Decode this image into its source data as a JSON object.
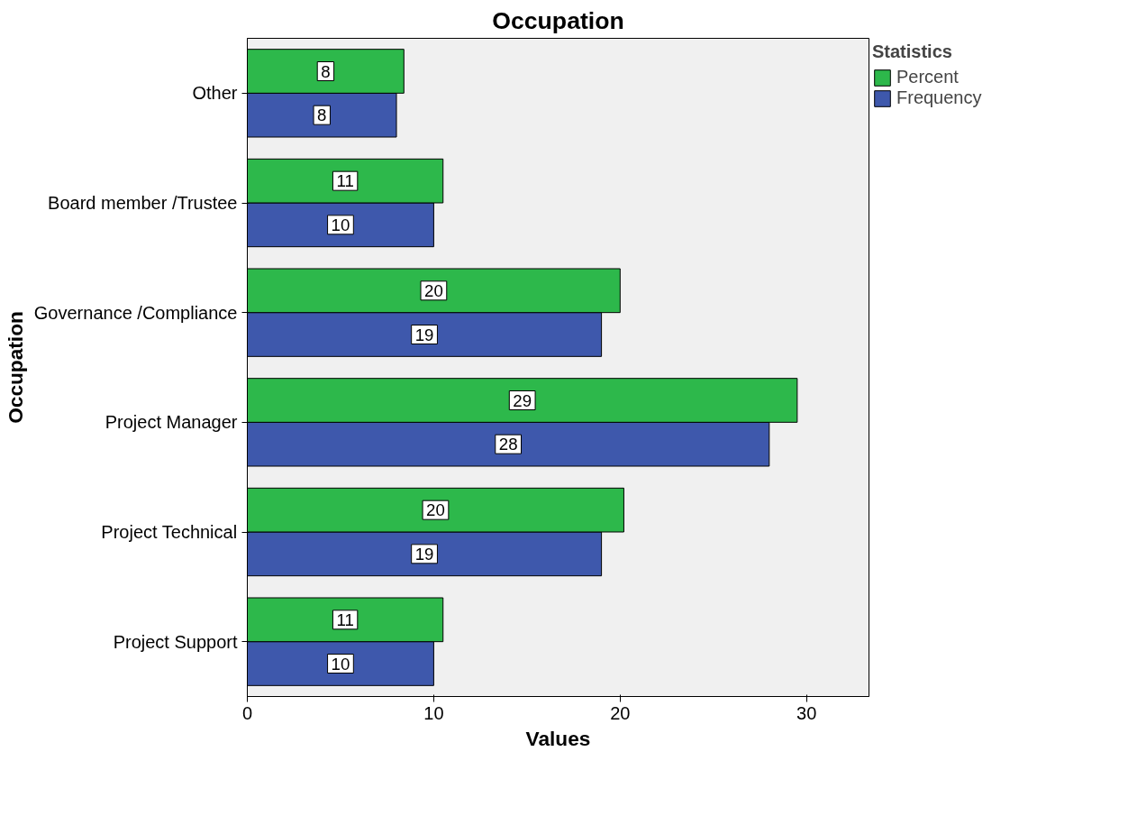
{
  "chart_data": {
    "type": "bar",
    "orientation": "horizontal",
    "title": "Occupation",
    "xlabel": "Values",
    "ylabel": "Occupation",
    "legend_title": "Statistics",
    "legend": "top right",
    "grid": false,
    "categories": [
      "Other",
      "Board member /Trustee",
      "Governance /Compliance",
      "Project Manager",
      "Project Technical",
      "Project Support"
    ],
    "series": [
      {
        "name": "Frequency",
        "color": "#3e58ac",
        "values": [
          8,
          10,
          19,
          28,
          19,
          10
        ],
        "value_labels": [
          "8",
          "10",
          "19",
          "28",
          "19",
          "10"
        ]
      },
      {
        "name": "Percent",
        "color": "#2db84b",
        "values": [
          8.4,
          10.5,
          20.0,
          29.5,
          20.2,
          10.5
        ],
        "value_labels": [
          "8",
          "11",
          "20",
          "29",
          "20",
          "11"
        ]
      }
    ],
    "xlim": [
      0,
      33.35
    ],
    "xticks": [
      0,
      10,
      20,
      30
    ]
  }
}
